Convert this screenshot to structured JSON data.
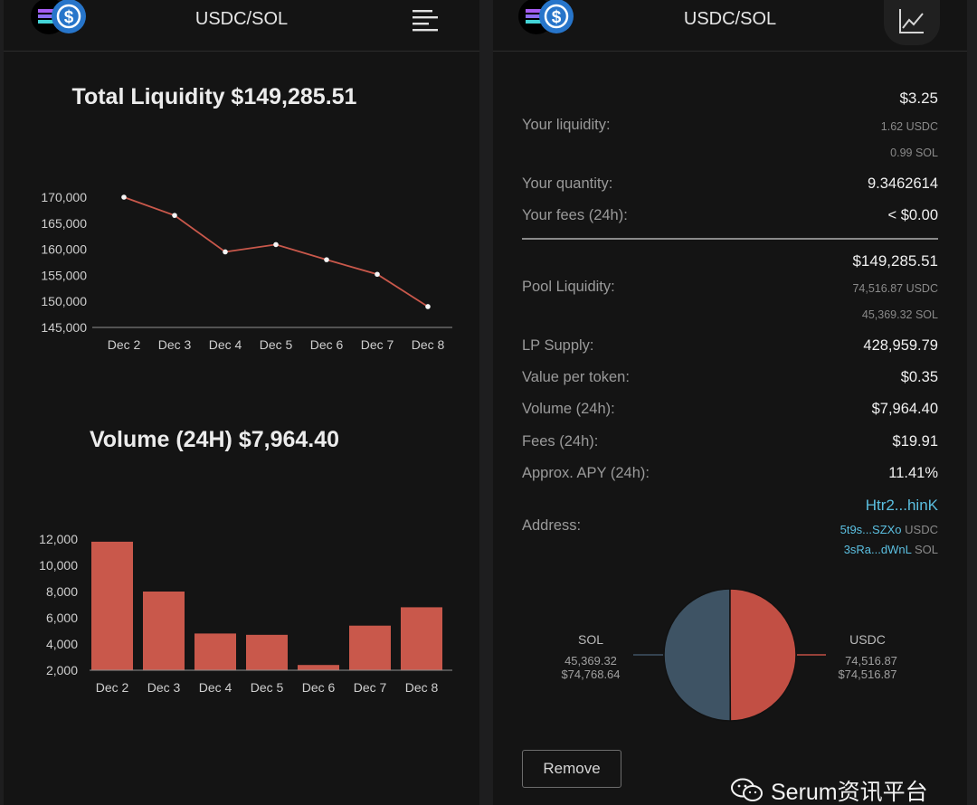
{
  "left": {
    "title": "USDC/SOL",
    "liquidity_chart": {
      "title": "Total Liquidity $149,285.51",
      "y_ticks": [
        "170,000",
        "165,000",
        "160,000",
        "155,000",
        "150,000",
        "145,000"
      ],
      "x_ticks": [
        "Dec 2",
        "Dec 3",
        "Dec 4",
        "Dec 5",
        "Dec 6",
        "Dec 7",
        "Dec 8"
      ]
    },
    "volume_chart": {
      "title": "Volume (24H) $7,964.40",
      "y_ticks": [
        "12,000",
        "10,000",
        "8,000",
        "6,000",
        "4,000",
        "2,000"
      ],
      "x_ticks": [
        "Dec 2",
        "Dec 3",
        "Dec 4",
        "Dec 5",
        "Dec 6",
        "Dec 7",
        "Dec 8"
      ]
    }
  },
  "right": {
    "title": "USDC/SOL",
    "your_liquidity": {
      "label": "Your liquidity:",
      "value": "$3.25",
      "usdc": "1.62 USDC",
      "sol": "0.99 SOL"
    },
    "your_quantity": {
      "label": "Your quantity:",
      "value": "9.3462614"
    },
    "your_fees": {
      "label": "Your fees (24h):",
      "value": "< $0.00"
    },
    "pool_liquidity": {
      "label": "Pool Liquidity:",
      "value": "$149,285.51",
      "usdc": "74,516.87 USDC",
      "sol": "45,369.32 SOL"
    },
    "lp_supply": {
      "label": "LP Supply:",
      "value": "428,959.79"
    },
    "value_per_token": {
      "label": "Value per token:",
      "value": "$0.35"
    },
    "volume": {
      "label": "Volume (24h):",
      "value": "$7,964.40"
    },
    "fees": {
      "label": "Fees (24h):",
      "value": "$19.91"
    },
    "apy": {
      "label": "Approx. APY (24h):",
      "value": "11.41%"
    },
    "address": {
      "label": "Address:",
      "main": "Htr2...hinK",
      "usdc_addr": "5t9s...SZXo",
      "usdc_tok": "USDC",
      "sol_addr": "3sRa...dWnL",
      "sol_tok": "SOL"
    },
    "pie": {
      "sol_label": "SOL",
      "sol_amount": "45,369.32",
      "sol_value": "$74,768.64",
      "usdc_label": "USDC",
      "usdc_amount": "74,516.87",
      "usdc_value": "$74,516.87"
    },
    "remove_label": "Remove"
  },
  "watermark": "Serum资讯平台",
  "colors": {
    "series": "#c9584b",
    "pie_sol": "#3e5364",
    "pie_usdc": "#c24f44",
    "link": "#5bbfe0",
    "background": "#141414"
  },
  "chart_data": [
    {
      "type": "line",
      "title": "Total Liquidity $149,285.51",
      "x": [
        "Dec 2",
        "Dec 3",
        "Dec 4",
        "Dec 5",
        "Dec 6",
        "Dec 7",
        "Dec 8"
      ],
      "values": [
        170000,
        166500,
        159500,
        160900,
        158000,
        155200,
        149000
      ],
      "ylim": [
        145000,
        170000
      ],
      "grid": false
    },
    {
      "type": "bar",
      "title": "Volume (24H) $7,964.40",
      "categories": [
        "Dec 2",
        "Dec 3",
        "Dec 4",
        "Dec 5",
        "Dec 6",
        "Dec 7",
        "Dec 8"
      ],
      "values": [
        11800,
        8000,
        4800,
        4700,
        2400,
        5400,
        6800
      ],
      "ylim": [
        2000,
        12000
      ],
      "grid": false
    },
    {
      "type": "pie",
      "labels": [
        "SOL",
        "USDC"
      ],
      "values": [
        74768.64,
        74516.87
      ]
    }
  ]
}
